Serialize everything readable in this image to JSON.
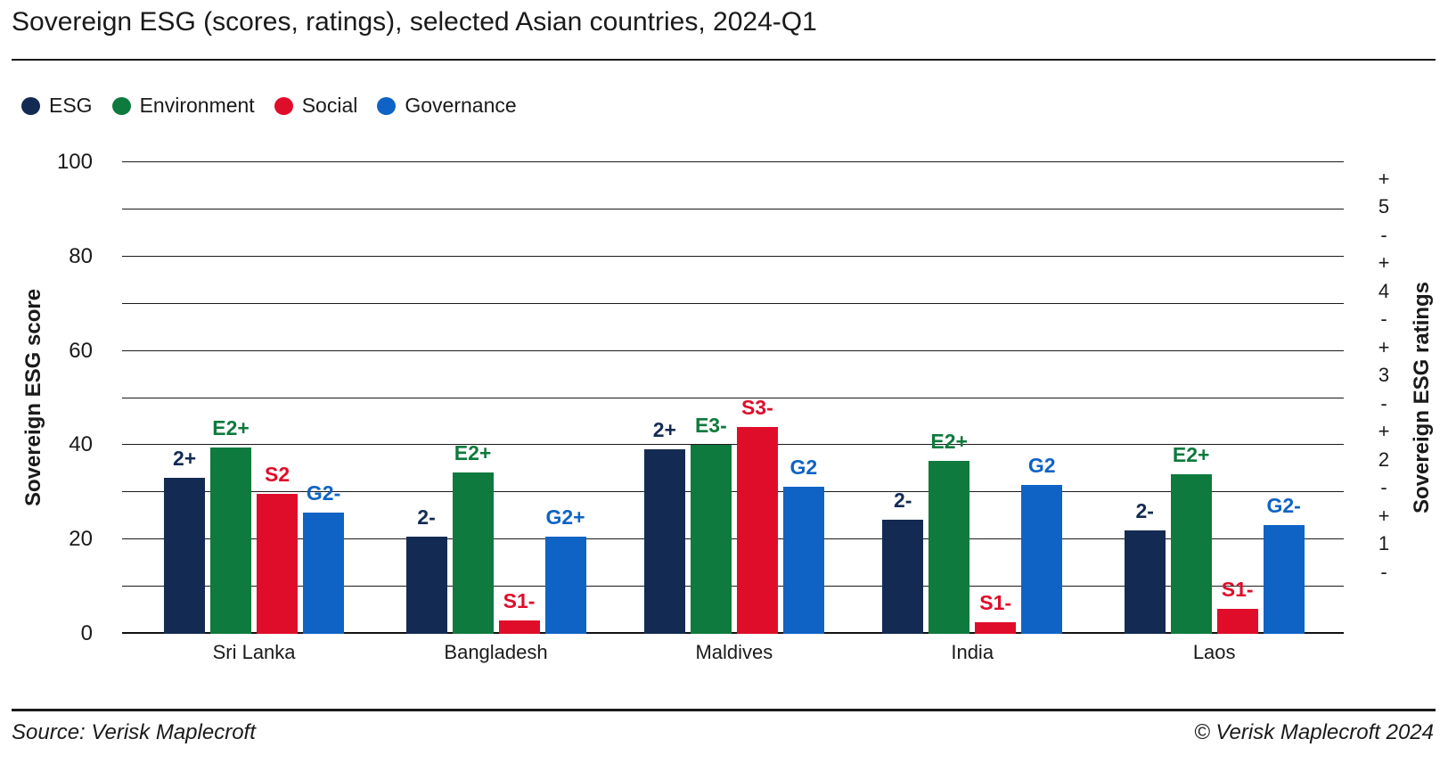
{
  "title": "Sovereign ESG (scores, ratings), selected Asian countries, 2024-Q1",
  "footer": {
    "source_left": "Source: Verisk Maplecroft",
    "source_right": "© Verisk Maplecroft 2024"
  },
  "colors": {
    "esg_navy": "#132b52",
    "environment_green": "#0e7a3d",
    "social_red": "#e00d2a",
    "governance_blue": "#0e63c5",
    "text": "#1a1a1a"
  },
  "chart_data": {
    "type": "bar",
    "title": "Sovereign ESG (scores, ratings), selected Asian countries, 2024-Q1",
    "categories": [
      "Sri Lanka",
      "Bangladesh",
      "Maldives",
      "India",
      "Laos"
    ],
    "series": [
      {
        "name": "ESG",
        "color": "#132b52",
        "values": [
          33.0,
          20.6,
          39.2,
          24.2,
          22.0
        ],
        "rating_labels": [
          "2+",
          "2-",
          "2+",
          "2-",
          "2-"
        ]
      },
      {
        "name": "Environment",
        "color": "#0e7a3d",
        "values": [
          39.5,
          34.2,
          40.0,
          36.7,
          33.9
        ],
        "rating_labels": [
          "E2+",
          "E2+",
          "E3-",
          "E2+",
          "E2+"
        ]
      },
      {
        "name": "Social",
        "color": "#e00d2a",
        "values": [
          29.6,
          2.9,
          43.9,
          2.5,
          5.3
        ],
        "rating_labels": [
          "S2",
          "S1-",
          "S3-",
          "S1-",
          "S1-"
        ]
      },
      {
        "name": "Governance",
        "color": "#0e63c5",
        "values": [
          25.7,
          20.6,
          31.1,
          31.6,
          23.1
        ],
        "rating_labels": [
          "G2-",
          "G2+",
          "G2",
          "G2",
          "G2-"
        ]
      }
    ],
    "ylabel_left": "Sovereign ESG score",
    "ylabel_right": "Sovereign ESG ratings",
    "ylim": [
      0,
      100
    ],
    "y_ticks": [
      0,
      20,
      40,
      60,
      80,
      100
    ],
    "gridline_step": 10,
    "right_axis_labels": [
      "+",
      "5",
      "-",
      "+",
      "4",
      "-",
      "+",
      "3",
      "-",
      "+",
      "2",
      "-",
      "+",
      "1",
      "-"
    ],
    "grid": "horizontal",
    "legend_position": "top-left"
  }
}
